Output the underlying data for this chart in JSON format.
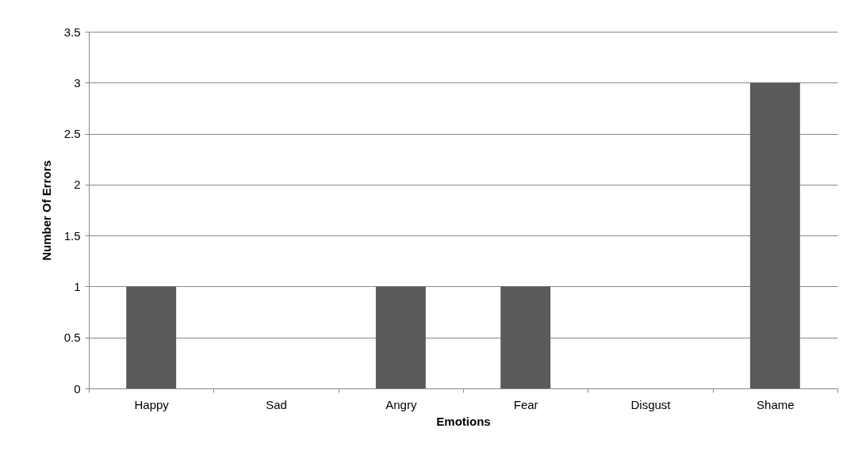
{
  "chart_data": {
    "type": "bar",
    "xlabel": "Emotions",
    "ylabel": "Number Of Errors",
    "categories": [
      "Happy",
      "Sad",
      "Angry",
      "Fear",
      "Disgust",
      "Shame"
    ],
    "values": [
      1,
      0,
      1,
      1,
      0,
      3
    ],
    "color": "#5a5a5a",
    "ylim": [
      0,
      3.5
    ],
    "yticks": [
      0,
      0.5,
      1,
      1.5,
      2,
      2.5,
      3,
      3.5
    ],
    "grid": "y"
  }
}
